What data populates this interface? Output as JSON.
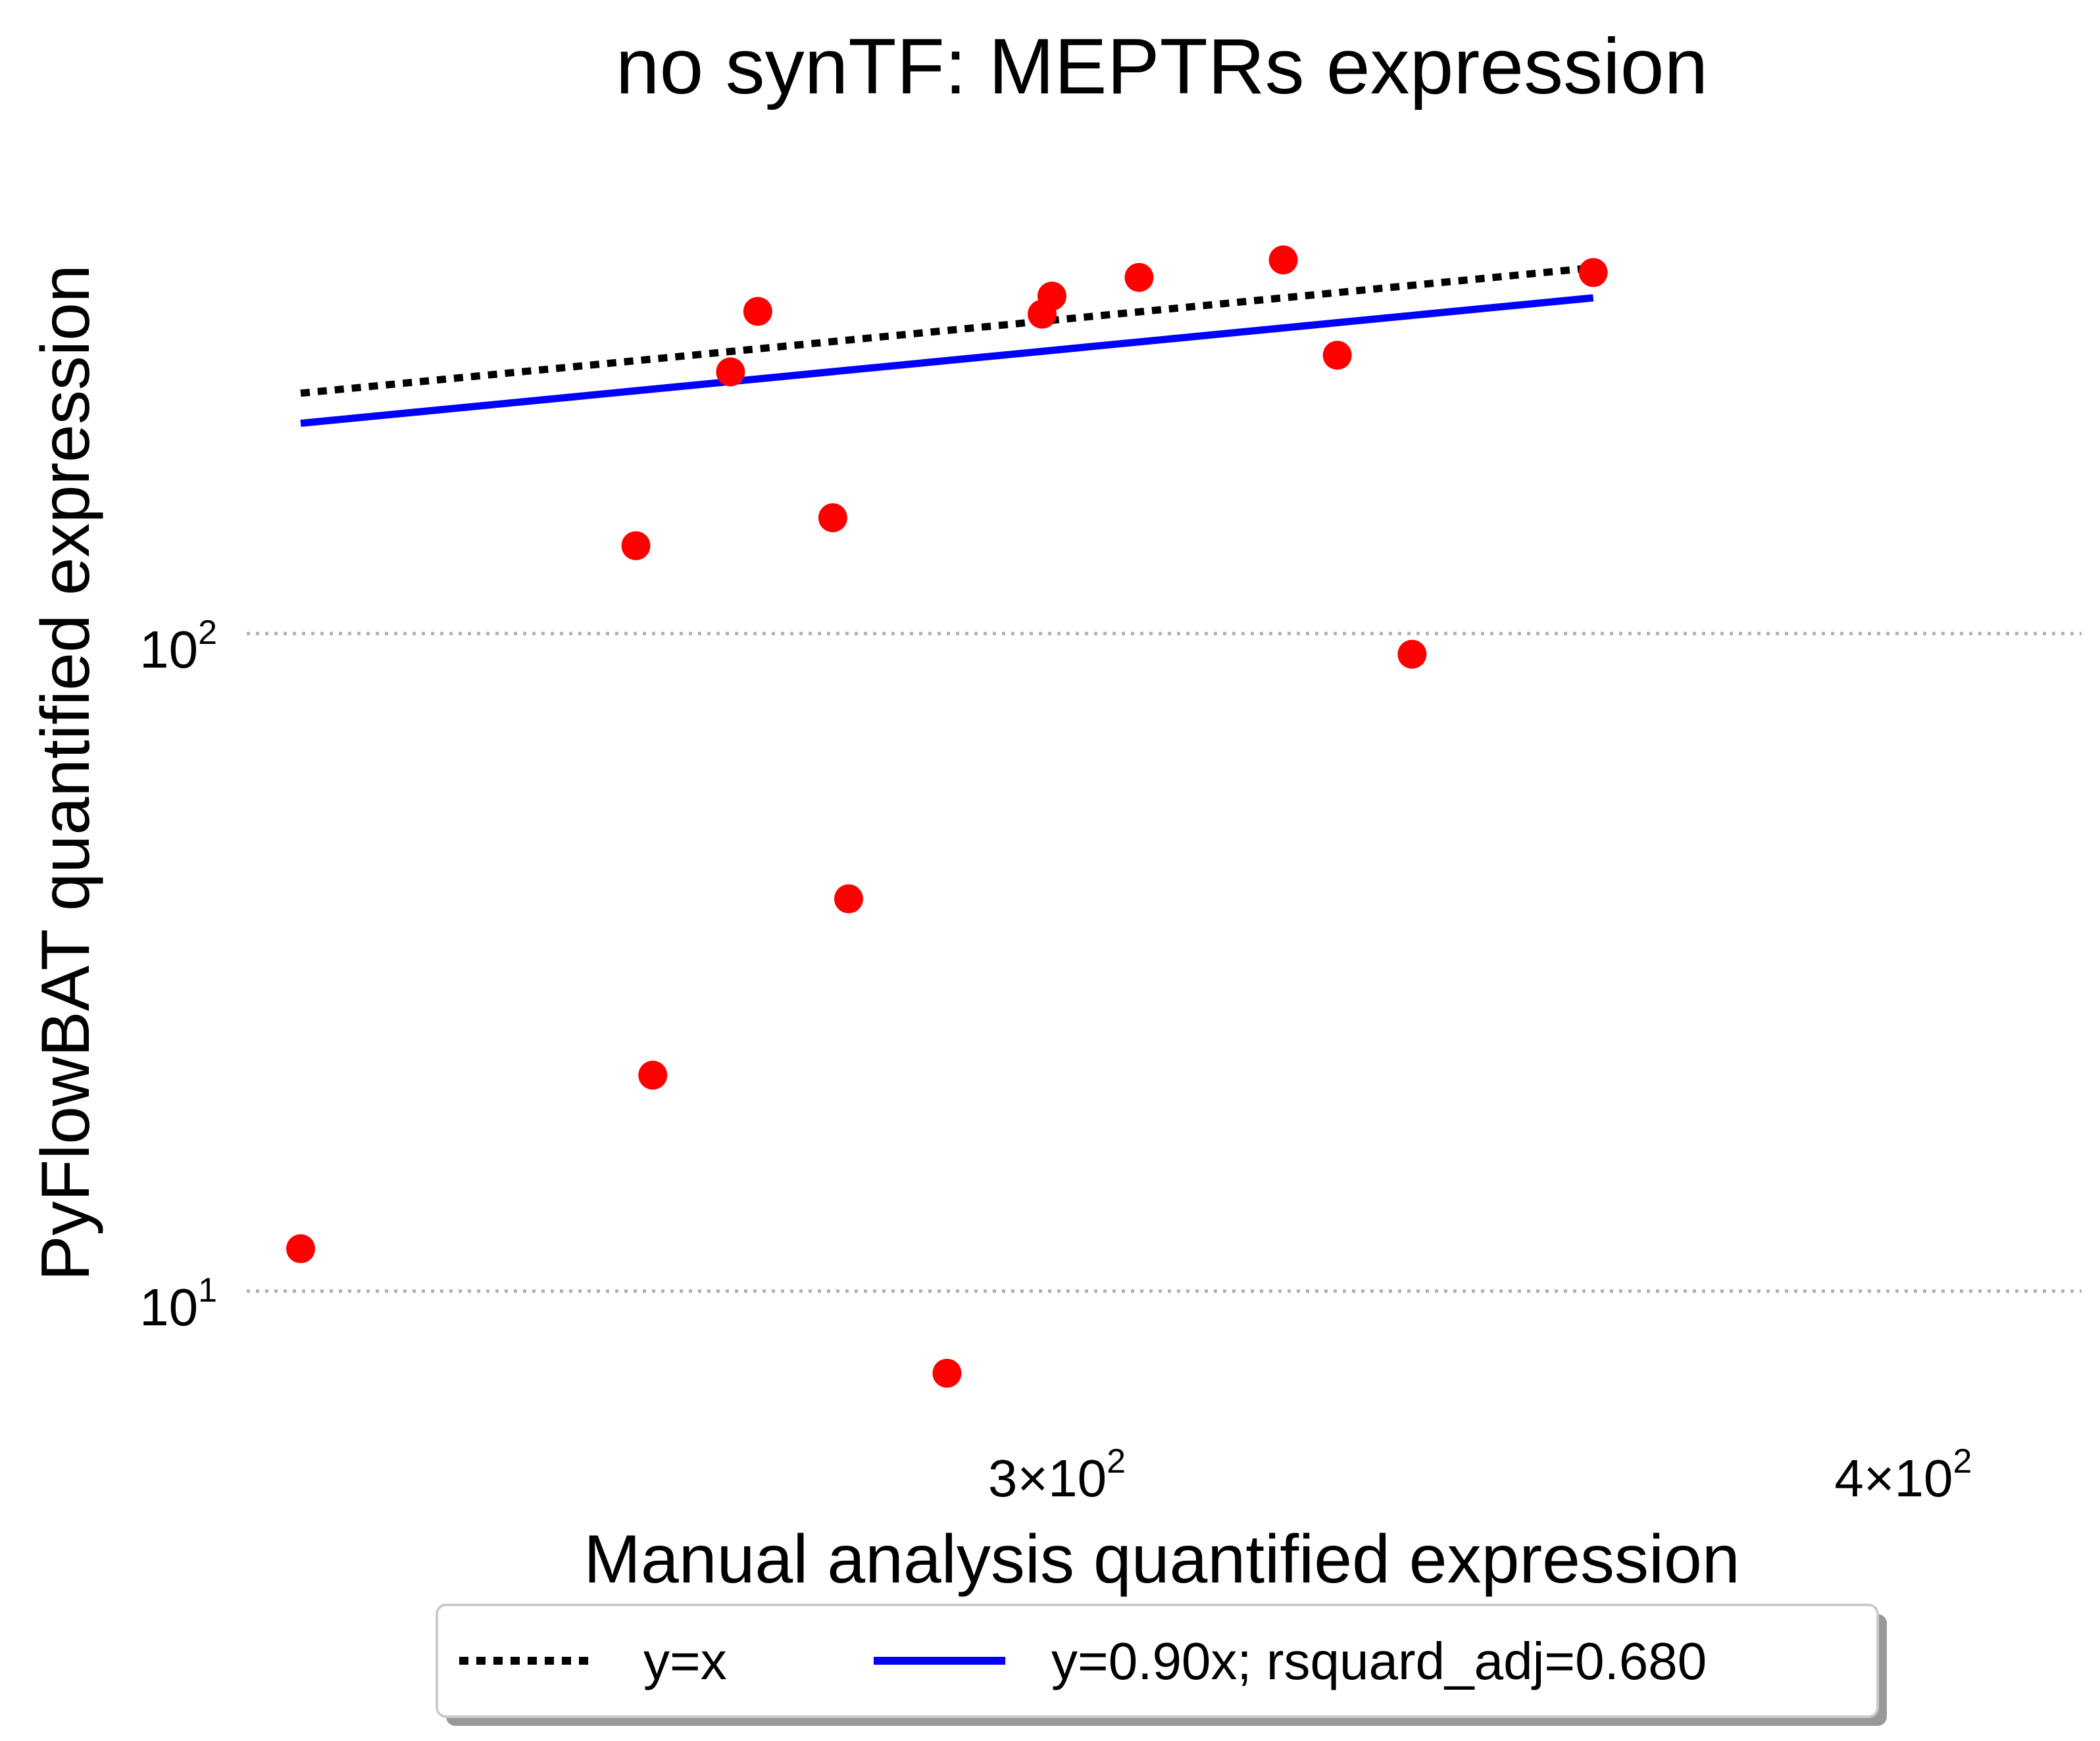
{
  "chart_data": {
    "type": "scatter",
    "title": "no synTF: MEPTRs expression",
    "xlabel": "Manual analysis quantified expression",
    "ylabel": "PyFlowBAT quantified expression",
    "xscale": "log",
    "yscale": "log",
    "xlim": [
      225,
      425
    ],
    "ylim": [
      6.5,
      580
    ],
    "grid": "y-major dotted",
    "x_ticks": [
      {
        "value": 300,
        "mantissa": "3",
        "times": "×",
        "base": "10",
        "exponent": "2"
      },
      {
        "value": 400,
        "mantissa": "4",
        "times": "×",
        "base": "10",
        "exponent": "2"
      }
    ],
    "y_ticks": [
      {
        "value": 10,
        "base": "10",
        "exponent": "1"
      },
      {
        "value": 100,
        "base": "10",
        "exponent": "2"
      }
    ],
    "series": [
      {
        "name": "points",
        "marker": "circle",
        "color": "#ff0000",
        "points": [
          {
            "x": 232,
            "y": 11.6
          },
          {
            "x": 260,
            "y": 136
          },
          {
            "x": 261.5,
            "y": 21.3
          },
          {
            "x": 268.5,
            "y": 250
          },
          {
            "x": 271,
            "y": 309
          },
          {
            "x": 278,
            "y": 150
          },
          {
            "x": 279.5,
            "y": 39.5
          },
          {
            "x": 289,
            "y": 7.5
          },
          {
            "x": 298.5,
            "y": 306
          },
          {
            "x": 299.5,
            "y": 326
          },
          {
            "x": 308.5,
            "y": 348
          },
          {
            "x": 324,
            "y": 370
          },
          {
            "x": 330,
            "y": 265
          },
          {
            "x": 338.5,
            "y": 93
          },
          {
            "x": 360,
            "y": 354
          }
        ]
      },
      {
        "name": "y=x",
        "type": "line",
        "style": "dotted",
        "color": "#000000",
        "x": [
          232,
          360
        ],
        "y": [
          232,
          360
        ]
      },
      {
        "name": "y=0.90x; rsquard_adj=0.680",
        "type": "line",
        "style": "solid",
        "color": "#0000ff",
        "x": [
          232,
          360
        ],
        "y": [
          208.8,
          324
        ]
      }
    ],
    "legend": {
      "placement": "bottom-center",
      "entries": [
        {
          "label": "y=x",
          "color": "#000000",
          "style": "dotted"
        },
        {
          "label": "y=0.90x; rsquard_adj=0.680",
          "color": "#0000ff",
          "style": "solid"
        }
      ]
    }
  }
}
